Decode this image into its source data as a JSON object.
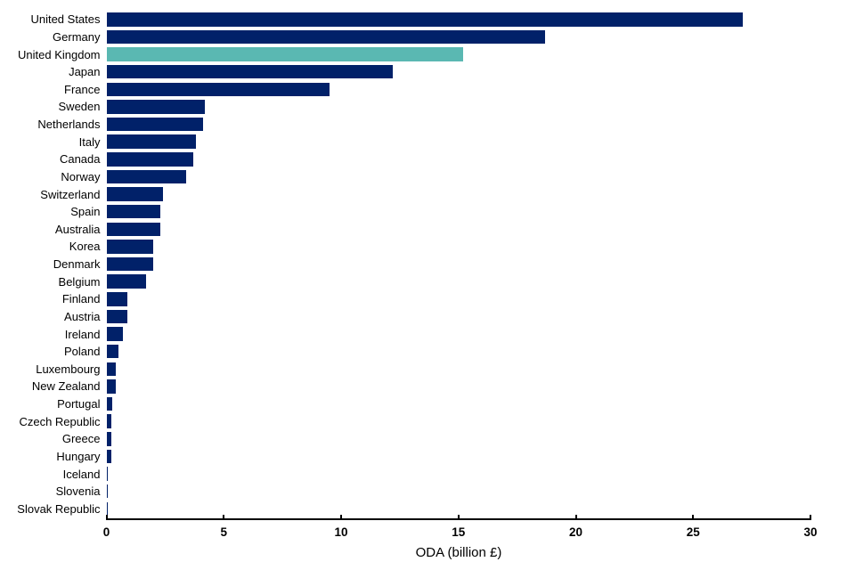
{
  "chart_data": {
    "type": "bar",
    "orientation": "horizontal",
    "title": "",
    "xlabel": "ODA (billion £)",
    "ylabel": "",
    "xlim": [
      0,
      30
    ],
    "xticks": [
      0,
      5,
      10,
      15,
      20,
      25,
      30
    ],
    "grid": false,
    "legend": "none",
    "bar_color": "#012169",
    "highlight_color": "#5ab8b2",
    "highlighted_category": "United Kingdom",
    "categories": [
      "United States",
      "Germany",
      "United Kingdom",
      "Japan",
      "France",
      "Sweden",
      "Netherlands",
      "Italy",
      "Canada",
      "Norway",
      "Switzerland",
      "Spain",
      "Australia",
      "Korea",
      "Denmark",
      "Belgium",
      "Finland",
      "Austria",
      "Ireland",
      "Poland",
      "Luxembourg",
      "New Zealand",
      "Portugal",
      "Czech Republic",
      "Greece",
      "Hungary",
      "Iceland",
      "Slovenia",
      "Slovak Republic"
    ],
    "values": [
      27.1,
      18.7,
      15.2,
      12.2,
      9.5,
      4.2,
      4.1,
      3.8,
      3.7,
      3.4,
      2.4,
      2.3,
      2.3,
      2.0,
      2.0,
      1.7,
      0.9,
      0.9,
      0.7,
      0.5,
      0.4,
      0.4,
      0.25,
      0.2,
      0.2,
      0.2,
      0.06,
      0.06,
      0.06
    ]
  }
}
